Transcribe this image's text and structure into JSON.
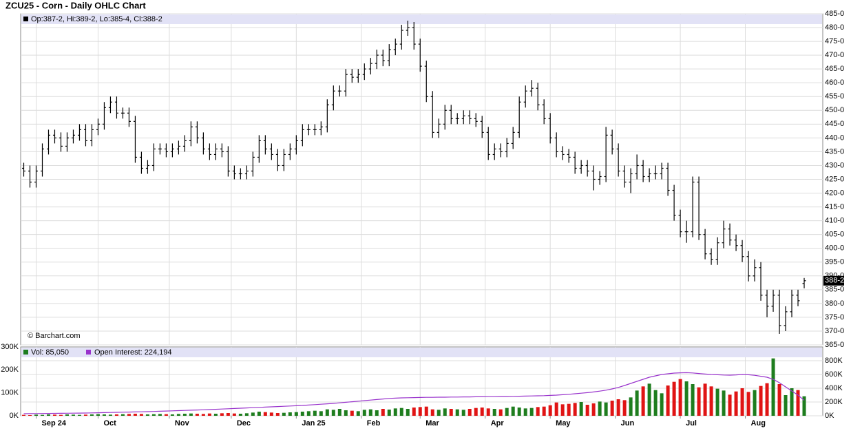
{
  "title": "ZCU25 - Corn - Daily OHLC Chart",
  "chart_data": [
    {
      "type": "ohlc",
      "legend": "Op:387-2, Hi:389-2, Lo:385-4, Cl:388-2",
      "watermark": "© Barchart.com",
      "last_label": {
        "value": 388.25,
        "label": "388-2"
      },
      "color": "#000000",
      "xlim": [
        -0.5,
        129
      ],
      "ylim": [
        365,
        485
      ],
      "yticks": [
        {
          "value": 485,
          "label": "485-0"
        },
        {
          "value": 480,
          "label": "480-0"
        },
        {
          "value": 475,
          "label": "475-0"
        },
        {
          "value": 470,
          "label": "470-0"
        },
        {
          "value": 465,
          "label": "465-0"
        },
        {
          "value": 460,
          "label": "460-0"
        },
        {
          "value": 455,
          "label": "455-0"
        },
        {
          "value": 450,
          "label": "450-0"
        },
        {
          "value": 445,
          "label": "445-0"
        },
        {
          "value": 440,
          "label": "440-0"
        },
        {
          "value": 435,
          "label": "435-0"
        },
        {
          "value": 430,
          "label": "430-0"
        },
        {
          "value": 425,
          "label": "425-0"
        },
        {
          "value": 420,
          "label": "420-0"
        },
        {
          "value": 415,
          "label": "415-0"
        },
        {
          "value": 410,
          "label": "410-0"
        },
        {
          "value": 405,
          "label": "405-0"
        },
        {
          "value": 400,
          "label": "400-0"
        },
        {
          "value": 395,
          "label": "395-0"
        },
        {
          "value": 390,
          "label": "390-0"
        },
        {
          "value": 385,
          "label": "385-0"
        },
        {
          "value": 380,
          "label": "380-0"
        },
        {
          "value": 375,
          "label": "375-0"
        },
        {
          "value": 370,
          "label": "370-0"
        },
        {
          "value": 365,
          "label": "365-0"
        }
      ],
      "grid": true,
      "open": [
        429,
        428,
        424,
        428,
        436,
        441,
        440,
        437,
        440,
        441,
        443,
        439,
        443,
        445,
        451,
        453,
        449,
        449,
        446,
        433,
        429,
        430,
        436,
        436,
        435,
        436,
        437,
        439,
        444,
        440,
        436,
        434,
        436,
        435,
        428,
        427,
        427,
        428,
        433,
        439,
        436,
        434,
        430,
        434,
        436,
        439,
        443,
        443,
        443,
        444,
        452,
        457,
        457,
        463,
        462,
        463,
        465,
        467,
        470,
        468,
        472,
        474,
        479,
        480,
        474,
        466,
        455,
        442,
        445,
        450,
        447,
        447,
        448,
        447,
        446,
        442,
        434,
        436,
        435,
        438,
        442,
        453,
        457,
        458,
        452,
        447,
        440,
        435,
        434,
        433,
        429,
        430,
        428,
        425,
        426,
        441,
        436,
        428,
        424,
        427,
        430,
        426,
        427,
        427,
        429,
        421,
        412,
        406,
        406,
        424,
        405,
        398,
        396,
        402,
        407,
        403,
        401,
        397,
        390,
        393,
        383,
        379,
        383,
        372,
        377,
        383,
        387.25
      ],
      "high": [
        431,
        430,
        430,
        438,
        443,
        443,
        442,
        442,
        443,
        445,
        445,
        445,
        447,
        453,
        455,
        455,
        451,
        451,
        448,
        435,
        432,
        438,
        438,
        438,
        438,
        439,
        441,
        446,
        446,
        442,
        438,
        438,
        438,
        437,
        430,
        429,
        430,
        435,
        441,
        441,
        438,
        436,
        436,
        438,
        441,
        445,
        445,
        445,
        446,
        454,
        459,
        459,
        465,
        465,
        465,
        467,
        469,
        472,
        472,
        474,
        476,
        481,
        482.5,
        482,
        476,
        468,
        457,
        447,
        452,
        452,
        449,
        450,
        450,
        449,
        448,
        444,
        438,
        438,
        440,
        444,
        455,
        459,
        461,
        460,
        454,
        449,
        442,
        437,
        436,
        435,
        432,
        432,
        430,
        428,
        444,
        443,
        438,
        430,
        429,
        434,
        432,
        429,
        430,
        431,
        431,
        423,
        414,
        410,
        426,
        426,
        407,
        400,
        404,
        410,
        409,
        405,
        403,
        399,
        396,
        395,
        385,
        385,
        385,
        379,
        385,
        385,
        389.25
      ],
      "low": [
        426,
        422,
        422,
        426,
        434,
        438,
        435,
        435,
        438,
        439,
        437,
        437,
        441,
        443,
        449,
        447,
        447,
        444,
        431,
        427,
        427,
        428,
        434,
        433,
        433,
        434,
        435,
        437,
        438,
        434,
        432,
        432,
        433,
        426,
        425,
        425,
        425,
        426,
        431,
        434,
        432,
        428,
        428,
        432,
        434,
        437,
        441,
        441,
        441,
        442,
        450,
        455,
        455,
        460,
        460,
        461,
        463,
        465,
        466,
        466,
        470,
        472,
        477,
        472,
        464,
        453,
        440,
        440,
        443,
        445,
        445,
        445,
        445,
        444,
        440,
        432,
        432,
        433,
        433,
        436,
        440,
        451,
        455,
        450,
        445,
        438,
        433,
        432,
        431,
        427,
        427,
        426,
        421,
        423,
        424,
        434,
        426,
        422,
        420,
        425,
        424,
        424,
        425,
        425,
        419,
        410,
        404,
        402,
        404,
        403,
        396,
        394,
        394,
        400,
        401,
        399,
        395,
        388,
        388,
        381,
        375,
        377,
        369,
        370,
        375,
        379,
        385.5
      ],
      "close": [
        428,
        424,
        428,
        436,
        441,
        440,
        437,
        440,
        441,
        443,
        439,
        443,
        445,
        451,
        453,
        449,
        449,
        446,
        433,
        429,
        430,
        436,
        436,
        435,
        436,
        437,
        439,
        444,
        440,
        436,
        434,
        436,
        435,
        428,
        427,
        427,
        428,
        433,
        439,
        436,
        434,
        430,
        434,
        436,
        439,
        443,
        443,
        443,
        444,
        452,
        457,
        457,
        463,
        462,
        463,
        465,
        467,
        470,
        468,
        472,
        474,
        479,
        480,
        474,
        466,
        455,
        442,
        445,
        450,
        447,
        447,
        448,
        447,
        446,
        442,
        434,
        436,
        435,
        438,
        442,
        453,
        457,
        458,
        452,
        447,
        440,
        435,
        434,
        433,
        429,
        430,
        428,
        425,
        426,
        441,
        436,
        428,
        424,
        427,
        430,
        426,
        427,
        427,
        429,
        421,
        412,
        406,
        406,
        424,
        405,
        398,
        396,
        402,
        407,
        403,
        401,
        397,
        390,
        393,
        383,
        379,
        383,
        372,
        377,
        383,
        381,
        388.25
      ]
    },
    {
      "type": "volume",
      "xlim": [
        -0.5,
        129
      ],
      "ylim": [
        0,
        300000
      ],
      "yticks": [
        {
          "value": 0,
          "label": "0K"
        },
        {
          "value": 100000,
          "label": "100K"
        },
        {
          "value": 200000,
          "label": "200K"
        },
        {
          "value": 300000,
          "label": "300K"
        }
      ],
      "y2lim": [
        0,
        1000000
      ],
      "y2ticks": [
        {
          "value": 0,
          "label": "0K"
        },
        {
          "value": 200000,
          "label": "200K"
        },
        {
          "value": 400000,
          "label": "400K"
        },
        {
          "value": 600000,
          "label": "600K"
        },
        {
          "value": 800000,
          "label": "800K"
        }
      ],
      "xticks": [
        {
          "value": 2,
          "label": "Sep 24"
        },
        {
          "value": 12,
          "label": "Oct"
        },
        {
          "value": 23.5,
          "label": "Nov"
        },
        {
          "value": 33.5,
          "label": "Dec"
        },
        {
          "value": 44,
          "label": "Jan 25"
        },
        {
          "value": 54.5,
          "label": "Feb"
        },
        {
          "value": 64,
          "label": "Mar"
        },
        {
          "value": 74.5,
          "label": "Apr"
        },
        {
          "value": 85,
          "label": "May"
        },
        {
          "value": 95.5,
          "label": "Jun"
        },
        {
          "value": 106,
          "label": "Jul"
        },
        {
          "value": 116.5,
          "label": "Aug"
        }
      ],
      "grid": true,
      "series": [
        {
          "name": "Vol: 85,050",
          "color": "#1e7d1e",
          "down_color": "#e01414",
          "values": [
            4000,
            3000,
            5000,
            4000,
            6000,
            5000,
            4000,
            6000,
            5000,
            4000,
            5000,
            6000,
            7000,
            6000,
            5000,
            6000,
            7000,
            8000,
            9000,
            8000,
            6000,
            7000,
            8000,
            7000,
            6000,
            8000,
            9000,
            10000,
            9000,
            8000,
            10000,
            9000,
            11000,
            12000,
            10000,
            9000,
            11000,
            14000,
            18000,
            16000,
            14000,
            12000,
            13000,
            15000,
            16000,
            18000,
            20000,
            22000,
            20000,
            28000,
            26000,
            30000,
            24000,
            22000,
            20000,
            26000,
            28000,
            24000,
            30000,
            27000,
            32000,
            34000,
            30000,
            36000,
            38000,
            40000,
            28000,
            26000,
            32000,
            30000,
            28000,
            26000,
            30000,
            34000,
            36000,
            32000,
            30000,
            28000,
            34000,
            40000,
            36000,
            32000,
            34000,
            38000,
            40000,
            46000,
            58000,
            50000,
            52000,
            56000,
            60000,
            48000,
            54000,
            62000,
            58000,
            66000,
            72000,
            68000,
            80000,
            110000,
            128000,
            140000,
            112000,
            98000,
            132000,
            148000,
            160000,
            150000,
            138000,
            124000,
            140000,
            128000,
            118000,
            110000,
            92000,
            106000,
            120000,
            104000,
            112000,
            130000,
            142000,
            250000,
            138000,
            90000,
            120000,
            112000,
            85050
          ]
        },
        {
          "name": "Open Interest: 224,194",
          "color": "#9933cc",
          "axis": "y2",
          "values": [
            30000,
            31000,
            32000,
            33000,
            34000,
            35000,
            36000,
            37000,
            38000,
            39000,
            40000,
            42000,
            44000,
            46000,
            48000,
            50000,
            52000,
            54000,
            56000,
            58000,
            60000,
            63000,
            66000,
            69000,
            72000,
            75000,
            78000,
            81000,
            84000,
            87000,
            90000,
            94000,
            98000,
            102000,
            106000,
            110000,
            114000,
            118000,
            122000,
            126000,
            130000,
            134000,
            138000,
            142000,
            146000,
            150000,
            156000,
            162000,
            168000,
            174000,
            180000,
            188000,
            196000,
            204000,
            212000,
            220000,
            228000,
            236000,
            244000,
            252000,
            256000,
            260000,
            262000,
            264000,
            266000,
            268000,
            268000,
            270000,
            270000,
            272000,
            272000,
            274000,
            274000,
            276000,
            276000,
            278000,
            278000,
            280000,
            280000,
            282000,
            284000,
            286000,
            288000,
            290000,
            292000,
            296000,
            300000,
            306000,
            312000,
            320000,
            328000,
            336000,
            346000,
            358000,
            372000,
            390000,
            412000,
            440000,
            470000,
            500000,
            530000,
            560000,
            580000,
            600000,
            610000,
            620000,
            624000,
            626000,
            622000,
            614000,
            606000,
            600000,
            596000,
            592000,
            590000,
            594000,
            600000,
            596000,
            588000,
            574000,
            560000,
            530000,
            480000,
            420000,
            360000,
            300000,
            224194
          ]
        }
      ]
    }
  ]
}
